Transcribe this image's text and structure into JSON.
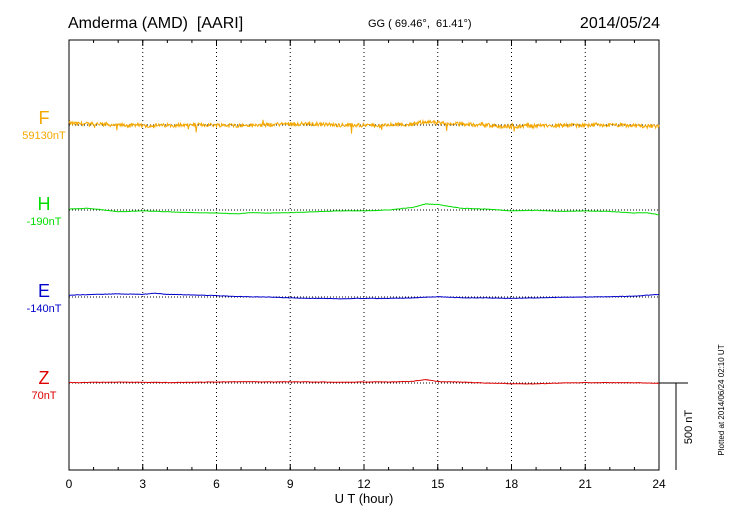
{
  "header": {
    "station": "Amderma (AMD)  [AARI]",
    "coords": "GG ( 69.46°,  61.41°)",
    "date": "2014/05/24"
  },
  "side_note": "Plotted at 2014/06/24 02:10 UT",
  "scale_bar": {
    "label": "500 nT",
    "value_nT": 500
  },
  "chart_data": {
    "type": "line",
    "xlabel": "U T (hour)",
    "xlim": [
      0,
      24
    ],
    "xticks": [
      0,
      3,
      6,
      9,
      12,
      15,
      18,
      21,
      24
    ],
    "grid": "vertical dotted every 3 hours",
    "series": [
      {
        "name": "F",
        "baseline_label": "59130nT",
        "baseline_nT": 59130,
        "color": "#f5a800",
        "noisy": true,
        "x": [
          0,
          1,
          2,
          3,
          4,
          5,
          6,
          7,
          8,
          9,
          10,
          11,
          12,
          13,
          14,
          14.5,
          15,
          16,
          17,
          17.5,
          18,
          19,
          20,
          21,
          22,
          23,
          24
        ],
        "y": [
          59140,
          59135,
          59130,
          59125,
          59128,
          59132,
          59130,
          59127,
          59130,
          59138,
          59135,
          59130,
          59128,
          59130,
          59135,
          59150,
          59140,
          59135,
          59130,
          59122,
          59120,
          59125,
          59128,
          59126,
          59130,
          59126,
          59120
        ]
      },
      {
        "name": "H",
        "baseline_label": "-190nT",
        "baseline_nT": -190,
        "color": "#00dd00",
        "noisy": false,
        "x": [
          0,
          0.7,
          1.3,
          2,
          3,
          4,
          5,
          6,
          6.8,
          7.5,
          8,
          9,
          10,
          11,
          12,
          13,
          14,
          14.5,
          15,
          15.5,
          16,
          17,
          18,
          19,
          20,
          21,
          22,
          23,
          23.5,
          24
        ],
        "y": [
          -185,
          -180,
          -188,
          -200,
          -195,
          -200,
          -205,
          -207,
          -212,
          -205,
          -208,
          -205,
          -200,
          -195,
          -195,
          -190,
          -175,
          -155,
          -158,
          -170,
          -180,
          -185,
          -195,
          -192,
          -198,
          -195,
          -198,
          -208,
          -205,
          -218
        ]
      },
      {
        "name": "E",
        "baseline_label": "-140nT",
        "baseline_nT": -140,
        "color": "#0000cc",
        "noisy": false,
        "x": [
          0,
          1,
          2,
          3,
          3.5,
          4,
          5,
          6,
          7,
          8,
          9,
          10,
          11,
          12,
          13,
          14,
          15,
          16,
          17,
          18,
          19,
          20,
          21,
          22,
          23,
          24
        ],
        "y": [
          -130,
          -125,
          -122,
          -125,
          -118,
          -125,
          -128,
          -132,
          -138,
          -140,
          -145,
          -148,
          -150,
          -148,
          -148,
          -145,
          -138,
          -145,
          -145,
          -148,
          -145,
          -142,
          -140,
          -138,
          -135,
          -125
        ]
      },
      {
        "name": "Z",
        "baseline_label": "70nT",
        "baseline_nT": 70,
        "color": "#dd0000",
        "noisy": false,
        "x": [
          0,
          1,
          2,
          3,
          4,
          5,
          6,
          7,
          8,
          9,
          10,
          11,
          12,
          13,
          14,
          14.5,
          15,
          16,
          17,
          18,
          19,
          20,
          21,
          22,
          23,
          24
        ],
        "y": [
          72,
          74,
          75,
          74,
          73,
          74,
          76,
          78,
          76,
          77,
          76,
          74,
          76,
          76,
          80,
          90,
          78,
          75,
          70,
          66,
          65,
          70,
          72,
          72,
          72,
          68
        ]
      }
    ]
  }
}
